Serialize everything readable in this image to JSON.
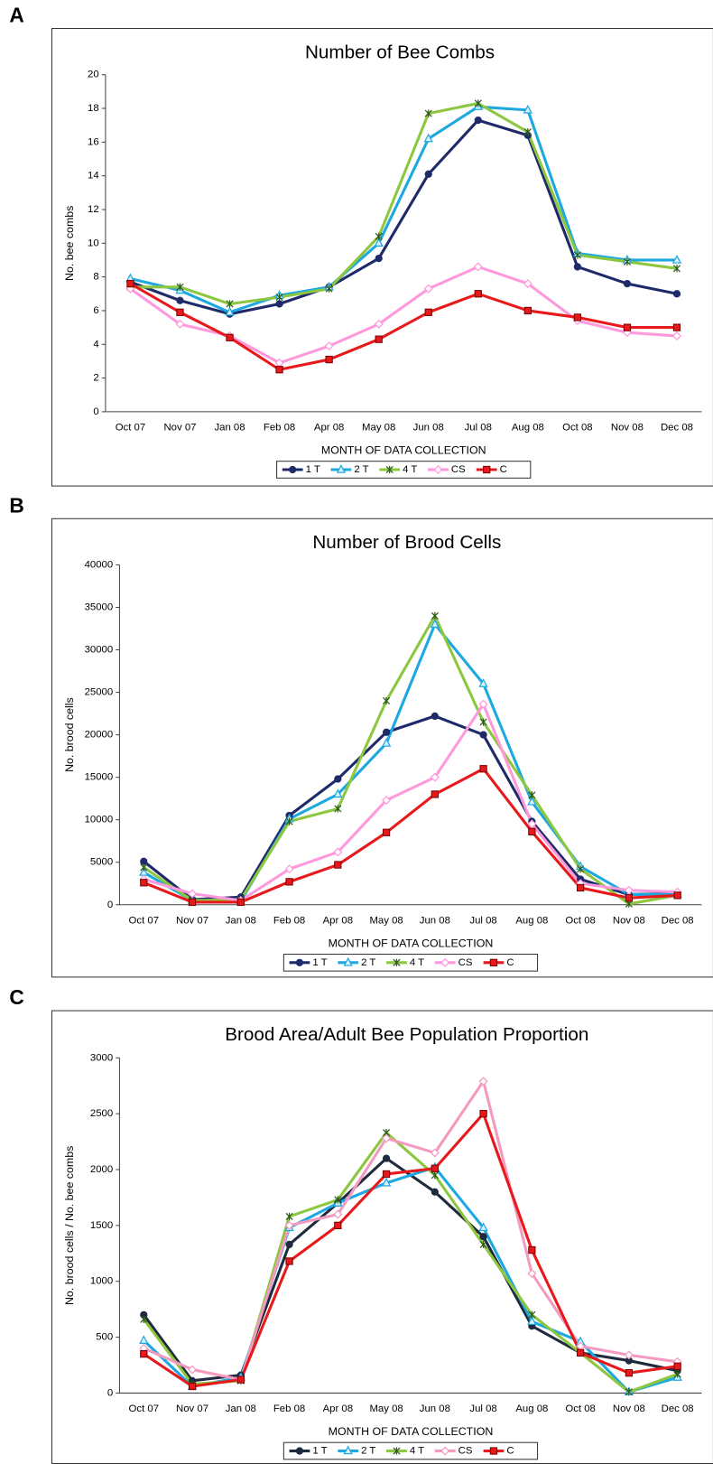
{
  "chart_data": [
    {
      "panel": "A",
      "type": "line",
      "title": "Number of Bee Combs",
      "xlabel": "MONTH OF DATA COLLECTION",
      "ylabel": "No. bee combs",
      "categories": [
        "Oct 07",
        "Nov 07",
        "Jan 08",
        "Feb 08",
        "Apr 08",
        "May 08",
        "Jun 08",
        "Jul 08",
        "Aug 08",
        "Oct 08",
        "Nov 08",
        "Dec 08"
      ],
      "ylim": [
        0,
        20
      ],
      "yticks": [
        0,
        2,
        4,
        6,
        8,
        10,
        12,
        14,
        16,
        18,
        20
      ],
      "grid": false,
      "legend": "bottom",
      "series": [
        {
          "name": "1 T",
          "color": "#1f2a6b",
          "marker": "circle",
          "values": [
            7.7,
            6.6,
            5.8,
            6.4,
            7.4,
            9.1,
            14.1,
            17.3,
            16.4,
            8.6,
            7.6,
            7.0
          ]
        },
        {
          "name": "2 T",
          "color": "#1ea8e0",
          "marker": "triangle",
          "values": [
            7.9,
            7.2,
            5.9,
            6.9,
            7.4,
            10.0,
            16.2,
            18.1,
            17.9,
            9.4,
            9.0,
            9.0
          ]
        },
        {
          "name": "4 T",
          "color": "#8dc63f",
          "marker": "asterisk",
          "values": [
            7.4,
            7.4,
            6.4,
            6.8,
            7.3,
            10.4,
            17.7,
            18.3,
            16.6,
            9.3,
            8.9,
            8.5
          ]
        },
        {
          "name": "CS",
          "color": "#ff99dd",
          "marker": "diamond",
          "values": [
            7.3,
            5.2,
            4.5,
            2.9,
            3.9,
            5.2,
            7.3,
            8.6,
            7.6,
            5.4,
            4.7,
            4.5
          ]
        },
        {
          "name": "C",
          "color": "#e8191b",
          "marker": "square",
          "values": [
            7.6,
            5.9,
            4.4,
            2.5,
            3.1,
            4.3,
            5.9,
            7.0,
            6.0,
            5.6,
            5.0,
            5.0
          ]
        }
      ]
    },
    {
      "panel": "B",
      "type": "line",
      "title": "Number of Brood Cells",
      "xlabel": "MONTH OF DATA COLLECTION",
      "ylabel": "No. brood cells",
      "categories": [
        "Oct 07",
        "Nov 07",
        "Jan 08",
        "Feb 08",
        "Apr 08",
        "May 08",
        "Jun 08",
        "Jul 08",
        "Aug 08",
        "Oct 08",
        "Nov 08",
        "Dec 08"
      ],
      "ylim": [
        0,
        40000
      ],
      "yticks": [
        0,
        5000,
        10000,
        15000,
        20000,
        25000,
        30000,
        35000,
        40000
      ],
      "grid": false,
      "legend": "bottom",
      "series": [
        {
          "name": "1 T",
          "color": "#1f2a6b",
          "marker": "circle",
          "values": [
            5100,
            600,
            900,
            10500,
            14800,
            20300,
            22200,
            20000,
            9800,
            3000,
            1200,
            1300
          ]
        },
        {
          "name": "2 T",
          "color": "#1ea8e0",
          "marker": "triangle",
          "values": [
            3800,
            500,
            400,
            10100,
            13000,
            19000,
            33000,
            26000,
            12100,
            4500,
            1200,
            1200
          ]
        },
        {
          "name": "4 T",
          "color": "#8dc63f",
          "marker": "asterisk",
          "values": [
            4400,
            500,
            600,
            9800,
            11300,
            24000,
            34000,
            21500,
            12900,
            4200,
            100,
            1100
          ]
        },
        {
          "name": "CS",
          "color": "#ff99dd",
          "marker": "diamond",
          "values": [
            3000,
            1300,
            500,
            4200,
            6200,
            12300,
            15000,
            23600,
            9500,
            2500,
            1700,
            1500
          ]
        },
        {
          "name": "C",
          "color": "#e8191b",
          "marker": "square",
          "values": [
            2600,
            300,
            300,
            2700,
            4700,
            8500,
            13000,
            16000,
            8600,
            2000,
            800,
            1100
          ]
        }
      ]
    },
    {
      "panel": "C",
      "type": "line",
      "title": "Brood Area/Adult Bee Population Proportion",
      "xlabel": "MONTH OF DATA COLLECTION",
      "ylabel": "No. brood cells / No. bee combs",
      "categories": [
        "Oct 07",
        "Nov 07",
        "Jan 08",
        "Feb 08",
        "Apr 08",
        "May 08",
        "Jun 08",
        "Jul 08",
        "Aug 08",
        "Oct 08",
        "Nov 08",
        "Dec 08"
      ],
      "ylim": [
        0,
        3000
      ],
      "yticks": [
        0,
        500,
        1000,
        1500,
        2000,
        2500,
        3000
      ],
      "grid": false,
      "legend": "bottom",
      "series": [
        {
          "name": "1 T",
          "color": "#1f2a3f",
          "marker": "circle",
          "values": [
            700,
            110,
            160,
            1330,
            1700,
            2100,
            1800,
            1400,
            600,
            360,
            290,
            200
          ]
        },
        {
          "name": "2 T",
          "color": "#1ea8e0",
          "marker": "triangle",
          "values": [
            470,
            60,
            140,
            1480,
            1700,
            1880,
            2020,
            1480,
            640,
            460,
            10,
            140
          ]
        },
        {
          "name": "4 T",
          "color": "#8dc63f",
          "marker": "asterisk",
          "values": [
            660,
            80,
            110,
            1580,
            1730,
            2330,
            1950,
            1330,
            700,
            360,
            10,
            170
          ]
        },
        {
          "name": "CS",
          "color": "#f49ac1",
          "marker": "diamond",
          "values": [
            400,
            210,
            120,
            1500,
            1600,
            2280,
            2150,
            2790,
            1070,
            420,
            340,
            280
          ]
        },
        {
          "name": "C",
          "color": "#e8191b",
          "marker": "square",
          "values": [
            350,
            60,
            120,
            1180,
            1500,
            1960,
            2010,
            2500,
            1280,
            360,
            180,
            240
          ]
        }
      ]
    }
  ]
}
